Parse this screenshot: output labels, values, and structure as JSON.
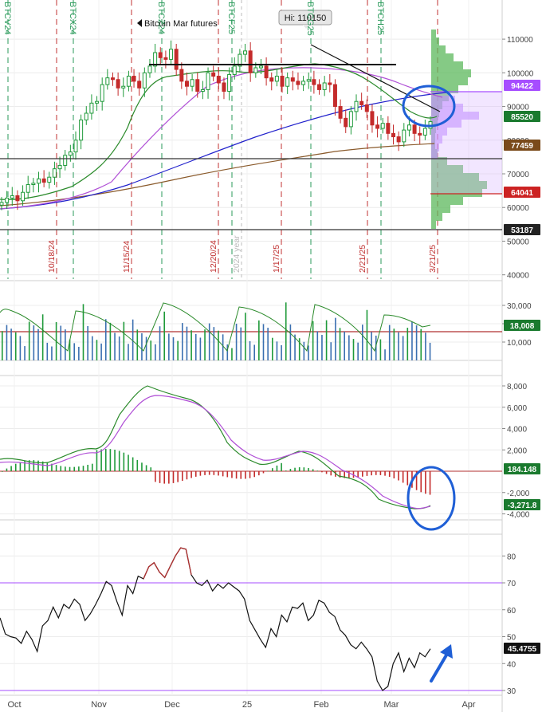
{
  "chart_data": {
    "type": "line",
    "title": "Bitcoin Mar futures",
    "x_axis": {
      "labels": [
        "Oct",
        "Nov",
        "Dec",
        "25",
        "Feb",
        "Mar",
        "Apr"
      ]
    },
    "annotations": {
      "high_label": "Hi: 110150",
      "contract_labels": [
        "BTCV24",
        "BTCX24",
        "BTCZ24",
        "BTCF25",
        "BTCG25",
        "BTCH25"
      ],
      "date_labels": [
        "10/18/24",
        "11/15/24",
        "12/20/24",
        "2024 year",
        "1/17/25",
        "2/21/25",
        "3/21/25"
      ]
    },
    "panels": [
      {
        "name": "price",
        "y_ticks": [
          40000,
          50000,
          60000,
          70000,
          80000,
          90000,
          100000,
          110000
        ],
        "y_range": [
          38000,
          120000
        ],
        "price_badges": [
          {
            "value": "94422",
            "color": "#a64dff"
          },
          {
            "value": "85520",
            "color": "#1a7a2e"
          },
          {
            "value": "77459",
            "color": "#7a4a1a"
          },
          {
            "value": "64041",
            "color": "#cc2222"
          },
          {
            "value": "53187",
            "color": "#222222"
          }
        ],
        "close_series": [
          61500,
          62800,
          63500,
          62000,
          64500,
          66800,
          67200,
          68500,
          67500,
          69000,
          71500,
          72500,
          75500,
          76500,
          80000,
          86000,
          88000,
          91000,
          91500,
          96500,
          98500,
          98000,
          95500,
          96000,
          99000,
          97500,
          95500,
          100000,
          102000,
          106000,
          104500,
          104000,
          107000,
          101000,
          97500,
          96000,
          98000,
          94500,
          95000,
          100000,
          99000,
          97000,
          94500,
          99500,
          102000,
          105500,
          106500,
          100000,
          101500,
          102000,
          98500,
          97500,
          99000,
          96000,
          98500,
          97500,
          96500,
          97500,
          98000,
          96500,
          95000,
          97000,
          96500,
          90000,
          86500,
          84000,
          88500,
          91500,
          90500,
          88500,
          84500,
          83500,
          85000,
          82000,
          81000,
          79500,
          83000,
          84500,
          82000,
          81500,
          83500,
          85500
        ],
        "support_lines": [
          {
            "value": 100500,
            "color": "#000000"
          },
          {
            "value": 74500,
            "color": "#222222"
          },
          {
            "value": 64041,
            "color": "#cc2222"
          },
          {
            "value": 53187,
            "color": "#222222"
          }
        ]
      },
      {
        "name": "volume",
        "y_ticks": [
          10000,
          20000,
          30000
        ],
        "y_range": [
          0,
          32000
        ],
        "badge": {
          "value": "18,008",
          "color": "#1a7a2e"
        }
      },
      {
        "name": "macd",
        "y_ticks": [
          -4000,
          -2000,
          2000,
          4000,
          6000,
          8000
        ],
        "y_range": [
          -5000,
          8500
        ],
        "badges": [
          {
            "value": "184.148",
            "color": "#1a7a2e"
          },
          {
            "value": "-3,271.8",
            "color": "#1a7a2e"
          }
        ]
      },
      {
        "name": "rsi",
        "y_ticks": [
          30,
          40,
          50,
          60,
          70,
          80
        ],
        "y_range": [
          28,
          86
        ],
        "badge": {
          "value": "45.4755",
          "color": "#111111"
        },
        "values": [
          57.0,
          51.0,
          50.0,
          49.5,
          47.5,
          52.0,
          49.0,
          44.5,
          54.0,
          56.0,
          61.0,
          57.0,
          62.0,
          60.5,
          64.0,
          62.0,
          56.0,
          58.5,
          62.0,
          66.0,
          70.5,
          69.0,
          63.0,
          58.0,
          69.0,
          66.0,
          72.5,
          71.5,
          76.0,
          77.5,
          74.0,
          72.0,
          76.0,
          80.0,
          83.0,
          82.5,
          73.0,
          70.0,
          69.0,
          71.0,
          67.0,
          69.5,
          68.0,
          70.0,
          68.5,
          67.0,
          64.0,
          56.0,
          52.5,
          49.0,
          46.0,
          53.0,
          50.0,
          58.0,
          55.5,
          61.0,
          60.5,
          62.5,
          56.0,
          58.0,
          63.5,
          62.5,
          59.0,
          57.5,
          52.5,
          50.5,
          47.0,
          45.5,
          48.0,
          45.5,
          42.5,
          33.5,
          30.0,
          31.5,
          40.0,
          44.0,
          37.0,
          42.0,
          38.5,
          44.0,
          42.5,
          45.5
        ]
      }
    ]
  }
}
